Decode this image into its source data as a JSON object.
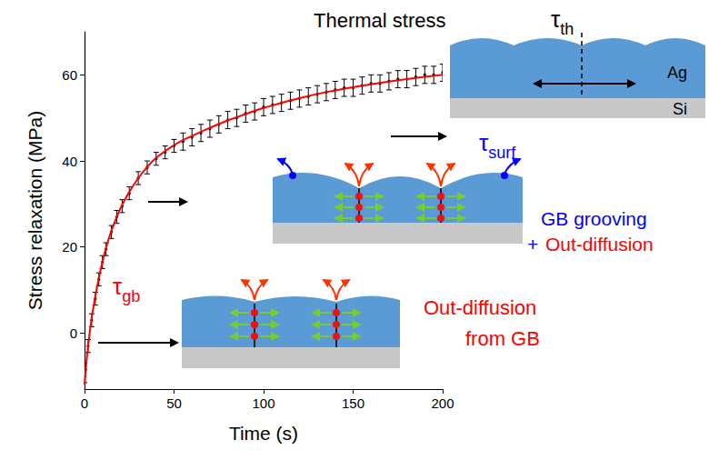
{
  "chart_data": {
    "type": "scatter",
    "x_label": "Time (s)",
    "y_label": "Stress relaxation (MPa)",
    "xlim": [
      0,
      200
    ],
    "xticks": [
      0,
      50,
      100,
      150,
      200
    ],
    "ylim": [
      -13,
      70
    ],
    "yticks": [
      0,
      20,
      40,
      60
    ],
    "grid": false,
    "series": [
      {
        "type": "scatter",
        "marker": "errorbar",
        "color": "#000000",
        "x": [
          0,
          2,
          4,
          6,
          8,
          10,
          12,
          15,
          18,
          21,
          25,
          30,
          35,
          40,
          45,
          50,
          55,
          60,
          65,
          70,
          75,
          80,
          85,
          90,
          95,
          100,
          105,
          110,
          115,
          120,
          125,
          130,
          135,
          140,
          145,
          150,
          155,
          160,
          165,
          170,
          175,
          180,
          185,
          190,
          195,
          200
        ],
        "values": [
          -10,
          -3,
          3,
          8,
          12.5,
          16.5,
          19.5,
          23.5,
          27,
          29.5,
          32.5,
          36,
          38.5,
          40.5,
          42,
          43.5,
          44.5,
          45.5,
          46.5,
          47.5,
          48.5,
          49.5,
          50,
          51,
          51.5,
          52.5,
          53,
          53.5,
          54,
          54.5,
          55,
          55.5,
          56,
          56.5,
          57,
          57,
          57.5,
          58,
          58,
          58.5,
          59,
          59,
          59.5,
          60,
          60,
          60.5
        ],
        "errors": [
          1.5,
          1.5,
          1.5,
          1.5,
          1.5,
          1.5,
          1.5,
          1.5,
          1.5,
          1.5,
          1.5,
          1.5,
          1.5,
          1.5,
          1.5,
          1.5,
          2,
          2,
          2,
          2,
          2,
          2,
          2,
          2,
          2,
          2,
          2,
          2,
          2,
          2,
          2,
          2,
          2,
          2,
          2,
          2,
          2,
          2,
          2,
          2,
          2,
          2,
          2,
          2,
          2,
          2
        ]
      },
      {
        "type": "line",
        "line_style": "solid",
        "color": "#ff0000",
        "x": [
          0,
          1,
          2,
          4,
          6,
          8,
          10,
          12,
          15,
          18,
          21,
          25,
          30,
          35,
          40,
          50,
          60,
          70,
          80,
          90,
          100,
          120,
          140,
          160,
          180,
          200
        ],
        "values": [
          -12,
          -7,
          -3,
          3.5,
          8.5,
          12.8,
          16.5,
          19.8,
          23.8,
          27,
          29.8,
          32.8,
          36,
          38.6,
          40.7,
          43.7,
          45.8,
          47.7,
          49.4,
          50.9,
          52.3,
          54.6,
          56.4,
          57.8,
          59,
          60
        ]
      }
    ],
    "annotations": [
      {
        "text": "Thermal stress",
        "color": "#000000"
      },
      {
        "text": "τ",
        "subscript": "th",
        "color": "#000000"
      },
      {
        "text": "Ag",
        "color": "#000000"
      },
      {
        "text": "Si",
        "color": "#000000"
      },
      {
        "text": "τ",
        "subscript": "surf",
        "color": "#0000ff"
      },
      {
        "text": "GB grooving",
        "color": "#0000ff"
      },
      {
        "text": "+",
        "color": "#0000ff"
      },
      {
        "text": "Out-diffusion",
        "color": "#ff0000"
      },
      {
        "text": "τ",
        "subscript": "gb",
        "color": "#ff0000"
      },
      {
        "text": "Out-diffusion",
        "color": "#ff0000"
      },
      {
        "text": "from GB",
        "color": "#ff0000"
      }
    ]
  }
}
